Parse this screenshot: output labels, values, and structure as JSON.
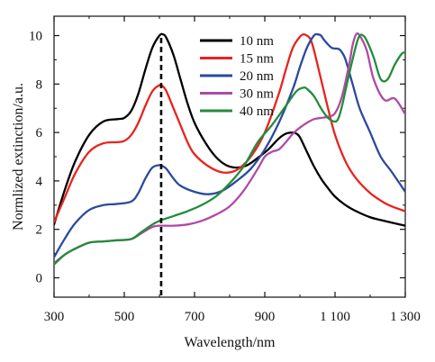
{
  "chart_data": {
    "type": "line",
    "xlabel": "Wavelength/nm",
    "ylabel": "Normlized extinction/a.u.",
    "xlim": [
      300,
      1300
    ],
    "ylim": [
      -0.8,
      10.8
    ],
    "xticks": [
      300,
      500,
      700,
      900,
      1100,
      1300
    ],
    "xtick_labels": [
      "300",
      "500",
      "700",
      "900",
      "1 100",
      "1 300"
    ],
    "yticks": [
      0,
      2,
      4,
      6,
      8,
      10
    ],
    "ytick_labels": [
      "0",
      "2",
      "4",
      "6",
      "8",
      "10"
    ],
    "legend_position": "top-right",
    "reference_line": {
      "x": 605,
      "style": "dashed",
      "color": "#000000"
    },
    "series": [
      {
        "name": "10 nm",
        "color": "#000000",
        "x": [
          300,
          330,
          360,
          400,
          440,
          480,
          500,
          520,
          540,
          560,
          580,
          600,
          610,
          620,
          640,
          660,
          680,
          700,
          730,
          760,
          790,
          820,
          850,
          880,
          910,
          940,
          960,
          980,
          990,
          1000,
          1020,
          1040,
          1060,
          1080,
          1100,
          1130,
          1160,
          1200,
          1240,
          1270,
          1300
        ],
        "y": [
          2.2,
          3.6,
          4.8,
          5.9,
          6.45,
          6.55,
          6.6,
          6.9,
          7.6,
          8.6,
          9.5,
          10.0,
          10.05,
          9.9,
          9.2,
          8.2,
          7.2,
          6.4,
          5.6,
          5.0,
          4.65,
          4.55,
          4.65,
          4.95,
          5.3,
          5.75,
          5.95,
          6.0,
          5.95,
          5.8,
          5.2,
          4.6,
          4.1,
          3.7,
          3.35,
          3.0,
          2.75,
          2.5,
          2.35,
          2.25,
          2.15
        ]
      },
      {
        "name": "15 nm",
        "color": "#e8231e",
        "x": [
          300,
          330,
          360,
          400,
          440,
          480,
          500,
          520,
          540,
          560,
          580,
          600,
          610,
          620,
          640,
          660,
          680,
          700,
          740,
          780,
          820,
          860,
          900,
          940,
          960,
          980,
          1000,
          1010,
          1020,
          1030,
          1040,
          1060,
          1080,
          1100,
          1130,
          1160,
          1200,
          1240,
          1270,
          1300
        ],
        "y": [
          2.3,
          3.3,
          4.3,
          5.2,
          5.55,
          5.6,
          5.65,
          5.9,
          6.4,
          7.1,
          7.7,
          7.95,
          7.9,
          7.7,
          7.0,
          6.3,
          5.6,
          5.1,
          4.6,
          4.35,
          4.45,
          5.0,
          6.0,
          7.6,
          8.6,
          9.5,
          9.95,
          10.05,
          10.0,
          9.85,
          9.4,
          8.2,
          7.0,
          5.9,
          4.8,
          4.1,
          3.5,
          3.1,
          2.9,
          2.75
        ]
      },
      {
        "name": "20 nm",
        "color": "#2b4a9e",
        "x": [
          300,
          330,
          360,
          400,
          440,
          480,
          520,
          540,
          560,
          580,
          600,
          610,
          620,
          640,
          660,
          700,
          740,
          780,
          820,
          860,
          900,
          940,
          980,
          1000,
          1020,
          1040,
          1050,
          1060,
          1070,
          1090,
          1110,
          1120,
          1130,
          1150,
          1170,
          1200,
          1230,
          1260,
          1300
        ],
        "y": [
          0.85,
          1.6,
          2.25,
          2.8,
          3.0,
          3.05,
          3.15,
          3.5,
          4.1,
          4.55,
          4.65,
          4.6,
          4.5,
          4.1,
          3.8,
          3.55,
          3.45,
          3.6,
          4.0,
          4.5,
          5.3,
          6.4,
          7.8,
          8.7,
          9.5,
          10.0,
          10.05,
          10.0,
          9.8,
          9.5,
          9.45,
          9.3,
          9.0,
          8.0,
          7.0,
          6.0,
          5.0,
          4.4,
          3.55
        ]
      },
      {
        "name": "30 nm",
        "color": "#b04aa5",
        "x": [
          300,
          330,
          360,
          400,
          440,
          480,
          520,
          550,
          580,
          600,
          640,
          680,
          720,
          760,
          800,
          840,
          880,
          900,
          920,
          940,
          960,
          980,
          1000,
          1020,
          1040,
          1060,
          1080,
          1100,
          1120,
          1140,
          1150,
          1160,
          1170,
          1190,
          1210,
          1240,
          1270,
          1300
        ],
        "y": [
          0.6,
          0.95,
          1.2,
          1.45,
          1.5,
          1.55,
          1.6,
          1.85,
          2.1,
          2.15,
          2.15,
          2.2,
          2.35,
          2.6,
          2.95,
          3.6,
          4.5,
          5.0,
          5.2,
          5.3,
          5.6,
          5.95,
          6.2,
          6.4,
          6.55,
          6.6,
          6.65,
          6.8,
          7.5,
          8.8,
          9.6,
          10.05,
          10.0,
          9.4,
          8.2,
          7.35,
          7.4,
          6.75
        ]
      },
      {
        "name": "40 nm",
        "color": "#238c3a",
        "x": [
          300,
          330,
          360,
          400,
          440,
          480,
          520,
          550,
          580,
          600,
          640,
          680,
          720,
          760,
          800,
          840,
          880,
          920,
          960,
          990,
          1010,
          1020,
          1040,
          1060,
          1080,
          1100,
          1110,
          1120,
          1140,
          1160,
          1170,
          1180,
          1190,
          1210,
          1230,
          1250,
          1270,
          1290,
          1300
        ],
        "y": [
          0.55,
          0.95,
          1.2,
          1.45,
          1.5,
          1.55,
          1.6,
          1.9,
          2.2,
          2.35,
          2.55,
          2.75,
          3.0,
          3.35,
          3.9,
          4.6,
          5.6,
          6.3,
          7.1,
          7.7,
          7.85,
          7.8,
          7.5,
          7.0,
          6.6,
          6.45,
          6.6,
          7.1,
          8.4,
          9.6,
          10.0,
          10.0,
          9.8,
          9.1,
          8.2,
          8.2,
          8.8,
          9.25,
          9.3
        ]
      }
    ]
  }
}
